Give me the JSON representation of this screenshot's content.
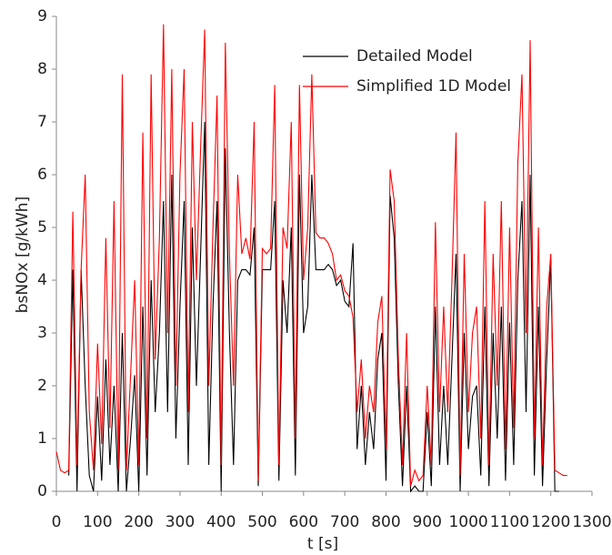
{
  "chart_data": {
    "type": "line",
    "xlabel": "t [s]",
    "ylabel": "bsNOx [g/kWh]",
    "x": [
      0,
      10,
      20,
      30,
      40,
      50,
      60,
      70,
      80,
      90,
      100,
      110,
      120,
      130,
      140,
      150,
      160,
      170,
      180,
      190,
      200,
      210,
      220,
      230,
      240,
      250,
      260,
      270,
      280,
      290,
      300,
      310,
      320,
      330,
      340,
      350,
      360,
      370,
      380,
      390,
      400,
      410,
      420,
      430,
      440,
      450,
      460,
      470,
      480,
      490,
      500,
      510,
      520,
      530,
      540,
      550,
      560,
      570,
      580,
      590,
      600,
      610,
      620,
      630,
      640,
      650,
      660,
      670,
      680,
      690,
      700,
      710,
      720,
      730,
      740,
      750,
      760,
      770,
      780,
      790,
      800,
      810,
      820,
      830,
      840,
      850,
      860,
      870,
      880,
      890,
      900,
      910,
      920,
      930,
      940,
      950,
      960,
      970,
      980,
      990,
      1000,
      1010,
      1020,
      1030,
      1040,
      1050,
      1060,
      1070,
      1080,
      1090,
      1100,
      1110,
      1120,
      1130,
      1140,
      1150,
      1160,
      1170,
      1180,
      1190,
      1200,
      1210,
      1220,
      1230,
      1240
    ],
    "series": [
      {
        "name": "Detailed Model",
        "color": "#000000",
        "values": [
          null,
          null,
          null,
          0.3,
          4.2,
          0,
          4.2,
          2.0,
          0.3,
          0,
          1.8,
          0.2,
          2.5,
          0.5,
          2.0,
          0,
          3.0,
          0,
          1.0,
          2.2,
          0,
          3.5,
          0.3,
          4.0,
          1.5,
          3.0,
          5.5,
          1.5,
          6.0,
          1.0,
          3.5,
          5.5,
          0.5,
          5.0,
          2.0,
          4.5,
          7.0,
          0.5,
          3.5,
          5.5,
          0,
          6.5,
          3.0,
          0.5,
          4.0,
          4.2,
          4.2,
          4.1,
          5.0,
          0.1,
          4.2,
          4.2,
          4.2,
          5.5,
          0.2,
          4.0,
          3.0,
          5.0,
          0.3,
          6.0,
          3.0,
          3.5,
          6.0,
          4.2,
          4.2,
          4.2,
          4.3,
          4.2,
          3.9,
          4.0,
          3.6,
          3.5,
          4.7,
          0.8,
          2.0,
          0.5,
          1.5,
          0.8,
          2.5,
          3.0,
          0.2,
          5.6,
          4.8,
          2.0,
          0.1,
          2.0,
          0,
          0.1,
          0,
          0,
          1.5,
          0.1,
          3.5,
          0.5,
          2.0,
          0.5,
          2.5,
          4.5,
          0,
          3.0,
          0.8,
          1.8,
          2.0,
          0.3,
          3.5,
          0.1,
          3.0,
          1.0,
          3.5,
          0.2,
          3.2,
          0.5,
          4.0,
          5.5,
          1.5,
          6.0,
          0.3,
          3.5,
          0.1,
          2.5,
          4.4,
          0,
          0,
          null,
          null
        ]
      },
      {
        "name": "Simplified 1D Model",
        "color": "#ff0000",
        "values": [
          0.75,
          0.4,
          0.35,
          0.4,
          5.3,
          0.5,
          4.2,
          6.0,
          1.5,
          0.4,
          2.8,
          0.9,
          4.8,
          1.2,
          5.5,
          0.4,
          7.9,
          0.4,
          2.2,
          4.0,
          0.5,
          6.8,
          1.0,
          7.9,
          2.5,
          4.8,
          8.85,
          3.0,
          8.0,
          2.0,
          6.0,
          8.0,
          1.5,
          7.0,
          4.0,
          6.5,
          8.75,
          2.0,
          5.0,
          7.5,
          0.5,
          8.5,
          4.5,
          2.0,
          6.0,
          4.5,
          4.8,
          4.4,
          7.0,
          0.2,
          4.6,
          4.5,
          4.6,
          7.7,
          0.5,
          5.0,
          4.6,
          7.0,
          1.0,
          7.7,
          4.0,
          5.0,
          7.9,
          4.9,
          4.8,
          4.8,
          4.7,
          4.5,
          4.0,
          4.1,
          3.8,
          3.7,
          3.3,
          1.5,
          2.5,
          1.0,
          2.0,
          1.5,
          3.2,
          3.7,
          0.8,
          6.1,
          5.5,
          2.5,
          0.5,
          3.0,
          0.1,
          0.4,
          0.2,
          0.3,
          2.0,
          0.5,
          5.1,
          1.5,
          3.5,
          1.5,
          4.0,
          6.8,
          0.3,
          4.5,
          1.5,
          3.0,
          3.5,
          1.0,
          5.5,
          0.5,
          4.5,
          2.0,
          5.5,
          0.8,
          5.0,
          1.2,
          6.2,
          7.9,
          3.0,
          8.55,
          1.0,
          5.0,
          0.5,
          3.5,
          4.5,
          0.4,
          0.35,
          0.3,
          0.3
        ]
      }
    ],
    "xlim": [
      0,
      1300
    ],
    "xticks": [
      0,
      100,
      200,
      300,
      400,
      500,
      600,
      700,
      800,
      900,
      1000,
      1100,
      1200,
      1300
    ],
    "ylim": [
      0,
      9
    ],
    "yticks": [
      0,
      1,
      2,
      3,
      4,
      5,
      6,
      7,
      8,
      9
    ]
  }
}
